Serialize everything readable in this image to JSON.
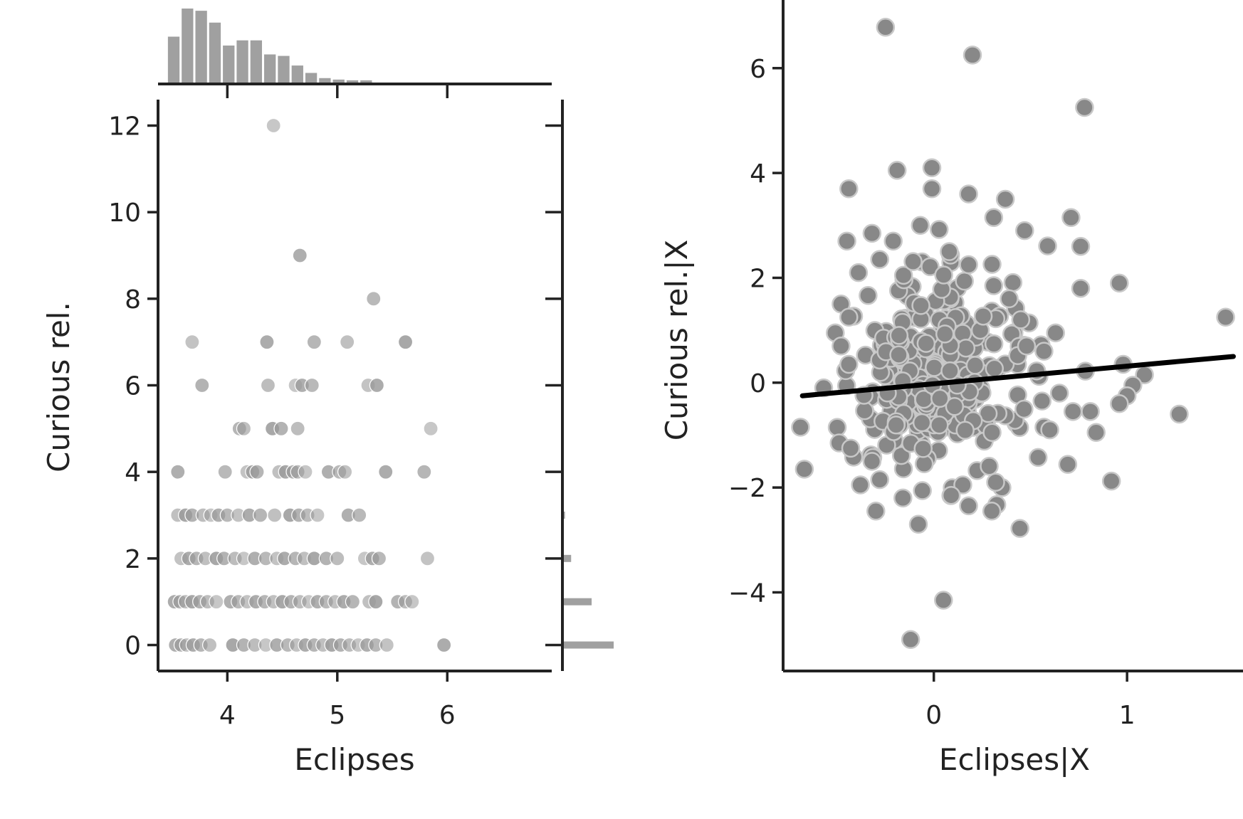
{
  "chart_data": [
    {
      "type": "scatter",
      "title": "",
      "xlabel": "Eclipses",
      "ylabel": "Curious rel.",
      "xlim": [
        3.37,
        6.95
      ],
      "ylim": [
        -0.6,
        12.6
      ],
      "xticks": [
        "4",
        "5",
        "6"
      ],
      "yticks": [
        "0",
        "2",
        "4",
        "6",
        "8",
        "10",
        "12"
      ],
      "grid": false,
      "legend": "none",
      "color": "#999999",
      "points": [
        {
          "x": 4.42,
          "y": 12
        },
        {
          "x": 4.66,
          "y": 9
        },
        {
          "x": 5.33,
          "y": 8
        },
        {
          "x": 3.68,
          "y": 7
        },
        {
          "x": 4.36,
          "y": 7
        },
        {
          "x": 4.79,
          "y": 7
        },
        {
          "x": 5.09,
          "y": 7
        },
        {
          "x": 5.62,
          "y": 7
        },
        {
          "x": 3.77,
          "y": 6
        },
        {
          "x": 4.37,
          "y": 6
        },
        {
          "x": 4.62,
          "y": 6
        },
        {
          "x": 4.68,
          "y": 6
        },
        {
          "x": 4.77,
          "y": 6
        },
        {
          "x": 5.28,
          "y": 6
        },
        {
          "x": 5.36,
          "y": 6
        },
        {
          "x": 4.11,
          "y": 5
        },
        {
          "x": 4.15,
          "y": 5
        },
        {
          "x": 4.41,
          "y": 5
        },
        {
          "x": 4.49,
          "y": 5
        },
        {
          "x": 4.64,
          "y": 5
        },
        {
          "x": 5.85,
          "y": 5
        },
        {
          "x": 3.55,
          "y": 4
        },
        {
          "x": 3.98,
          "y": 4
        },
        {
          "x": 4.18,
          "y": 4
        },
        {
          "x": 4.23,
          "y": 4
        },
        {
          "x": 4.27,
          "y": 4
        },
        {
          "x": 4.47,
          "y": 4
        },
        {
          "x": 4.53,
          "y": 4
        },
        {
          "x": 4.6,
          "y": 4
        },
        {
          "x": 4.64,
          "y": 4
        },
        {
          "x": 4.71,
          "y": 4
        },
        {
          "x": 4.92,
          "y": 4
        },
        {
          "x": 5.02,
          "y": 4
        },
        {
          "x": 5.07,
          "y": 4
        },
        {
          "x": 5.44,
          "y": 4
        },
        {
          "x": 5.79,
          "y": 4
        },
        {
          "x": 3.55,
          "y": 3
        },
        {
          "x": 3.62,
          "y": 3
        },
        {
          "x": 3.68,
          "y": 3
        },
        {
          "x": 3.78,
          "y": 3
        },
        {
          "x": 3.85,
          "y": 3
        },
        {
          "x": 3.92,
          "y": 3
        },
        {
          "x": 4.0,
          "y": 3
        },
        {
          "x": 4.1,
          "y": 3
        },
        {
          "x": 4.2,
          "y": 3
        },
        {
          "x": 4.3,
          "y": 3
        },
        {
          "x": 4.43,
          "y": 3
        },
        {
          "x": 4.57,
          "y": 3
        },
        {
          "x": 4.65,
          "y": 3
        },
        {
          "x": 4.73,
          "y": 3
        },
        {
          "x": 4.82,
          "y": 3
        },
        {
          "x": 5.1,
          "y": 3
        },
        {
          "x": 5.2,
          "y": 3
        },
        {
          "x": 3.58,
          "y": 2
        },
        {
          "x": 3.65,
          "y": 2
        },
        {
          "x": 3.72,
          "y": 2
        },
        {
          "x": 3.8,
          "y": 2
        },
        {
          "x": 3.9,
          "y": 2
        },
        {
          "x": 3.97,
          "y": 2
        },
        {
          "x": 4.07,
          "y": 2
        },
        {
          "x": 4.15,
          "y": 2
        },
        {
          "x": 4.25,
          "y": 2
        },
        {
          "x": 4.35,
          "y": 2
        },
        {
          "x": 4.45,
          "y": 2
        },
        {
          "x": 4.52,
          "y": 2
        },
        {
          "x": 4.62,
          "y": 2
        },
        {
          "x": 4.7,
          "y": 2
        },
        {
          "x": 4.79,
          "y": 2
        },
        {
          "x": 4.9,
          "y": 2
        },
        {
          "x": 5.0,
          "y": 2
        },
        {
          "x": 5.25,
          "y": 2
        },
        {
          "x": 5.32,
          "y": 2
        },
        {
          "x": 5.38,
          "y": 2
        },
        {
          "x": 5.82,
          "y": 2
        },
        {
          "x": 3.52,
          "y": 1
        },
        {
          "x": 3.57,
          "y": 1
        },
        {
          "x": 3.62,
          "y": 1
        },
        {
          "x": 3.68,
          "y": 1
        },
        {
          "x": 3.75,
          "y": 1
        },
        {
          "x": 3.82,
          "y": 1
        },
        {
          "x": 3.9,
          "y": 1
        },
        {
          "x": 4.03,
          "y": 1
        },
        {
          "x": 4.1,
          "y": 1
        },
        {
          "x": 4.18,
          "y": 1
        },
        {
          "x": 4.26,
          "y": 1
        },
        {
          "x": 4.34,
          "y": 1
        },
        {
          "x": 4.42,
          "y": 1
        },
        {
          "x": 4.5,
          "y": 1
        },
        {
          "x": 4.58,
          "y": 1
        },
        {
          "x": 4.66,
          "y": 1
        },
        {
          "x": 4.74,
          "y": 1
        },
        {
          "x": 4.82,
          "y": 1
        },
        {
          "x": 4.9,
          "y": 1
        },
        {
          "x": 4.98,
          "y": 1
        },
        {
          "x": 5.06,
          "y": 1
        },
        {
          "x": 5.14,
          "y": 1
        },
        {
          "x": 5.29,
          "y": 1
        },
        {
          "x": 5.35,
          "y": 1
        },
        {
          "x": 5.55,
          "y": 1
        },
        {
          "x": 5.62,
          "y": 1
        },
        {
          "x": 5.68,
          "y": 1
        },
        {
          "x": 3.53,
          "y": 0
        },
        {
          "x": 3.58,
          "y": 0
        },
        {
          "x": 3.63,
          "y": 0
        },
        {
          "x": 3.69,
          "y": 0
        },
        {
          "x": 3.76,
          "y": 0
        },
        {
          "x": 3.84,
          "y": 0
        },
        {
          "x": 4.05,
          "y": 0
        },
        {
          "x": 4.15,
          "y": 0
        },
        {
          "x": 4.25,
          "y": 0
        },
        {
          "x": 4.35,
          "y": 0
        },
        {
          "x": 4.45,
          "y": 0
        },
        {
          "x": 4.55,
          "y": 0
        },
        {
          "x": 4.63,
          "y": 0
        },
        {
          "x": 4.71,
          "y": 0
        },
        {
          "x": 4.79,
          "y": 0
        },
        {
          "x": 4.87,
          "y": 0
        },
        {
          "x": 4.95,
          "y": 0
        },
        {
          "x": 5.03,
          "y": 0
        },
        {
          "x": 5.11,
          "y": 0
        },
        {
          "x": 5.19,
          "y": 0
        },
        {
          "x": 5.27,
          "y": 0
        },
        {
          "x": 5.35,
          "y": 0
        },
        {
          "x": 5.45,
          "y": 0
        },
        {
          "x": 5.97,
          "y": 0
        }
      ],
      "marginal_x_hist": {
        "bin_start": 3.45,
        "bin_width": 0.125,
        "heights": [
          0.62,
          1.0,
          0.97,
          0.81,
          0.5,
          0.57,
          0.57,
          0.38,
          0.36,
          0.23,
          0.13,
          0.06,
          0.04,
          0.03,
          0.03
        ]
      },
      "marginal_y_hist": {
        "categories": [
          0,
          1,
          2,
          3
        ],
        "heights": [
          1.0,
          0.57,
          0.17,
          0.05
        ]
      }
    },
    {
      "type": "scatter",
      "title": "",
      "xlabel": "Eclipses|X",
      "ylabel": "Curious rel.|X",
      "xlim": [
        -0.78,
        1.6
      ],
      "ylim": [
        -5.5,
        7.3
      ],
      "xticks": [
        "0",
        "1"
      ],
      "yticks": [
        "−4",
        "−2",
        "0",
        "2",
        "4",
        "6"
      ],
      "grid": false,
      "legend": "none",
      "color": "#888888",
      "fit_line": {
        "x": [
          -0.68,
          1.55
        ],
        "y": [
          -0.25,
          0.5
        ]
      },
      "points": [
        {
          "x": -0.25,
          "y": 6.78
        },
        {
          "x": 0.2,
          "y": 6.25
        },
        {
          "x": 0.78,
          "y": 5.25
        },
        {
          "x": -0.19,
          "y": 4.05
        },
        {
          "x": -0.44,
          "y": 3.7
        },
        {
          "x": -0.01,
          "y": 4.1
        },
        {
          "x": -0.01,
          "y": 3.7
        },
        {
          "x": 0.18,
          "y": 3.6
        },
        {
          "x": 0.37,
          "y": 3.5
        },
        {
          "x": 0.31,
          "y": 3.15
        },
        {
          "x": 0.71,
          "y": 3.15
        },
        {
          "x": 0.47,
          "y": 2.9
        },
        {
          "x": -0.07,
          "y": 3.0
        },
        {
          "x": -0.32,
          "y": 2.85
        },
        {
          "x": -0.21,
          "y": 2.7
        },
        {
          "x": -0.45,
          "y": 2.7
        },
        {
          "x": 0.76,
          "y": 2.6
        },
        {
          "x": 0.08,
          "y": 2.5
        },
        {
          "x": -0.28,
          "y": 2.35
        },
        {
          "x": 0.18,
          "y": 2.25
        },
        {
          "x": -0.39,
          "y": 2.1
        },
        {
          "x": 0.96,
          "y": 1.9
        },
        {
          "x": 0.31,
          "y": 1.85
        },
        {
          "x": 0.76,
          "y": 1.8
        },
        {
          "x": 0.39,
          "y": 1.6
        },
        {
          "x": -0.48,
          "y": 1.5
        },
        {
          "x": -0.44,
          "y": 1.25
        },
        {
          "x": 0.45,
          "y": 1.2
        },
        {
          "x": 1.51,
          "y": 1.25
        },
        {
          "x": 0.63,
          "y": 0.95
        },
        {
          "x": -0.51,
          "y": 0.95
        },
        {
          "x": -0.48,
          "y": 0.7
        },
        {
          "x": 0.48,
          "y": 0.7
        },
        {
          "x": 0.57,
          "y": 0.6
        },
        {
          "x": -0.44,
          "y": 0.35
        },
        {
          "x": 0.98,
          "y": 0.35
        },
        {
          "x": 1.09,
          "y": 0.15
        },
        {
          "x": 1.03,
          "y": -0.05
        },
        {
          "x": -0.57,
          "y": -0.1
        },
        {
          "x": 0.65,
          "y": -0.2
        },
        {
          "x": 1.0,
          "y": -0.25
        },
        {
          "x": 0.56,
          "y": -0.35
        },
        {
          "x": 0.96,
          "y": -0.4
        },
        {
          "x": 0.72,
          "y": -0.55
        },
        {
          "x": 0.81,
          "y": -0.55
        },
        {
          "x": 1.27,
          "y": -0.6
        },
        {
          "x": -0.69,
          "y": -0.85
        },
        {
          "x": 0.57,
          "y": -0.85
        },
        {
          "x": 0.6,
          "y": -0.9
        },
        {
          "x": 0.84,
          "y": -0.95
        },
        {
          "x": -0.49,
          "y": -1.15
        },
        {
          "x": -0.43,
          "y": -1.25
        },
        {
          "x": -0.32,
          "y": -1.5
        },
        {
          "x": -0.67,
          "y": -1.65
        },
        {
          "x": -0.28,
          "y": -1.85
        },
        {
          "x": -0.38,
          "y": -1.95
        },
        {
          "x": 0.15,
          "y": -1.95
        },
        {
          "x": 0.32,
          "y": -1.9
        },
        {
          "x": 0.09,
          "y": -2.15
        },
        {
          "x": -0.16,
          "y": -2.2
        },
        {
          "x": 0.18,
          "y": -2.35
        },
        {
          "x": -0.3,
          "y": -2.45
        },
        {
          "x": 0.3,
          "y": -2.45
        },
        {
          "x": -0.08,
          "y": -2.7
        },
        {
          "x": 0.05,
          "y": -4.15
        },
        {
          "x": -0.12,
          "y": -4.9
        }
      ],
      "dense_cluster": {
        "x_center": 0.02,
        "y_center": 0.1,
        "x_spread": 0.42,
        "y_spread": 1.7
      }
    }
  ]
}
